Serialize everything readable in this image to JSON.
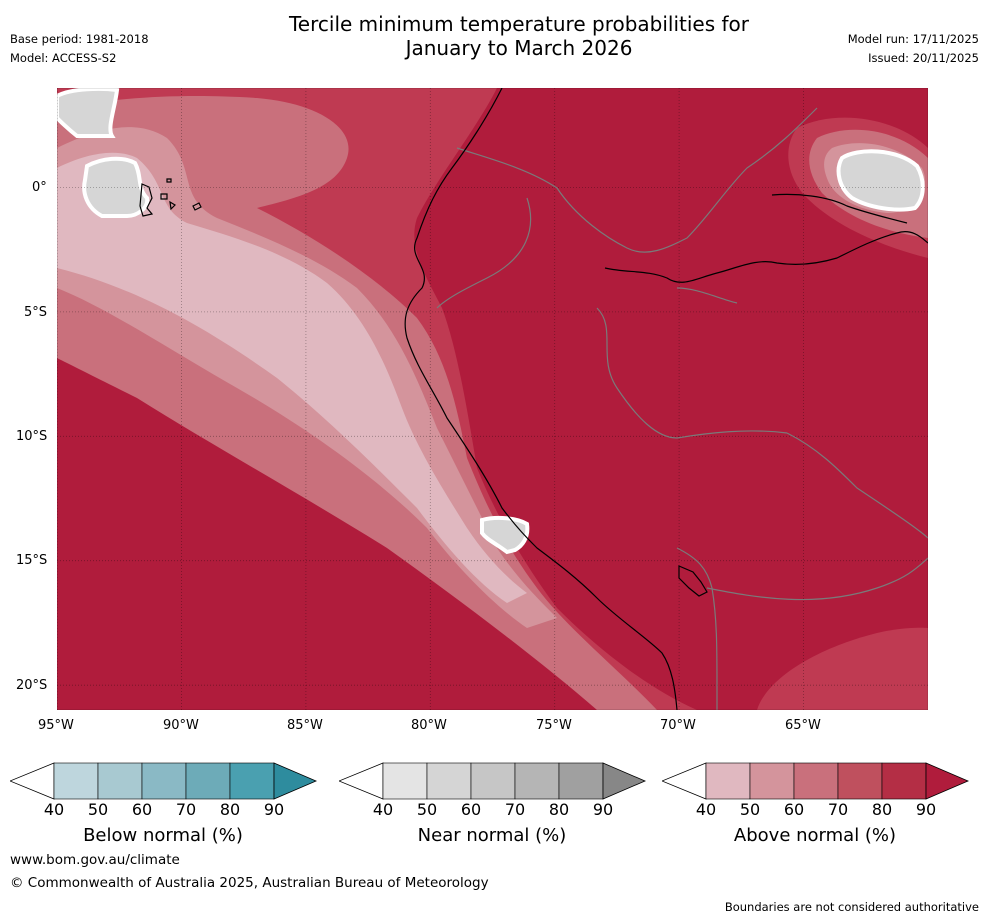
{
  "header": {
    "title_line1": "Tercile minimum temperature probabilities for",
    "title_line2": "January to March 2026",
    "base_period": "Base period: 1981-2018",
    "model": "Model: ACCESS-S2",
    "model_run": "Model run: 17/11/2025",
    "issued": "Issued: 20/11/2025"
  },
  "map": {
    "lat_labels": [
      "0°",
      "5°S",
      "10°S",
      "15°S",
      "20°S"
    ],
    "lon_labels": [
      "95°W",
      "90°W",
      "85°W",
      "80°W",
      "75°W",
      "70°W",
      "65°W"
    ],
    "lon_range": [
      -95,
      -60
    ],
    "lat_range": [
      -21,
      4
    ]
  },
  "colorbars": [
    {
      "label": "Below normal (%)",
      "ticks": [
        "40",
        "50",
        "60",
        "70",
        "80",
        "90"
      ],
      "colors": [
        "#bed6dd",
        "#a8c9d1",
        "#8ab9c5",
        "#6dabb8",
        "#4aa0b0",
        "#2e8c9e"
      ]
    },
    {
      "label": "Near normal (%)",
      "ticks": [
        "40",
        "50",
        "60",
        "70",
        "80",
        "90"
      ],
      "colors": [
        "#e4e4e4",
        "#d5d5d5",
        "#c6c6c6",
        "#b5b5b5",
        "#a0a0a0",
        "#878787"
      ]
    },
    {
      "label": "Above normal (%)",
      "ticks": [
        "40",
        "50",
        "60",
        "70",
        "80",
        "90"
      ],
      "colors": [
        "#e0b8c0",
        "#d4949c",
        "#c9707c",
        "#bf505e",
        "#b42e45",
        "#b01c3c"
      ]
    }
  ],
  "footer": {
    "website": "www.bom.gov.au/climate",
    "copyright": "© Commonwealth of Australia 2025, Australian Bureau of Meteorology",
    "disclaimer": "Boundaries are not considered authoritative"
  }
}
